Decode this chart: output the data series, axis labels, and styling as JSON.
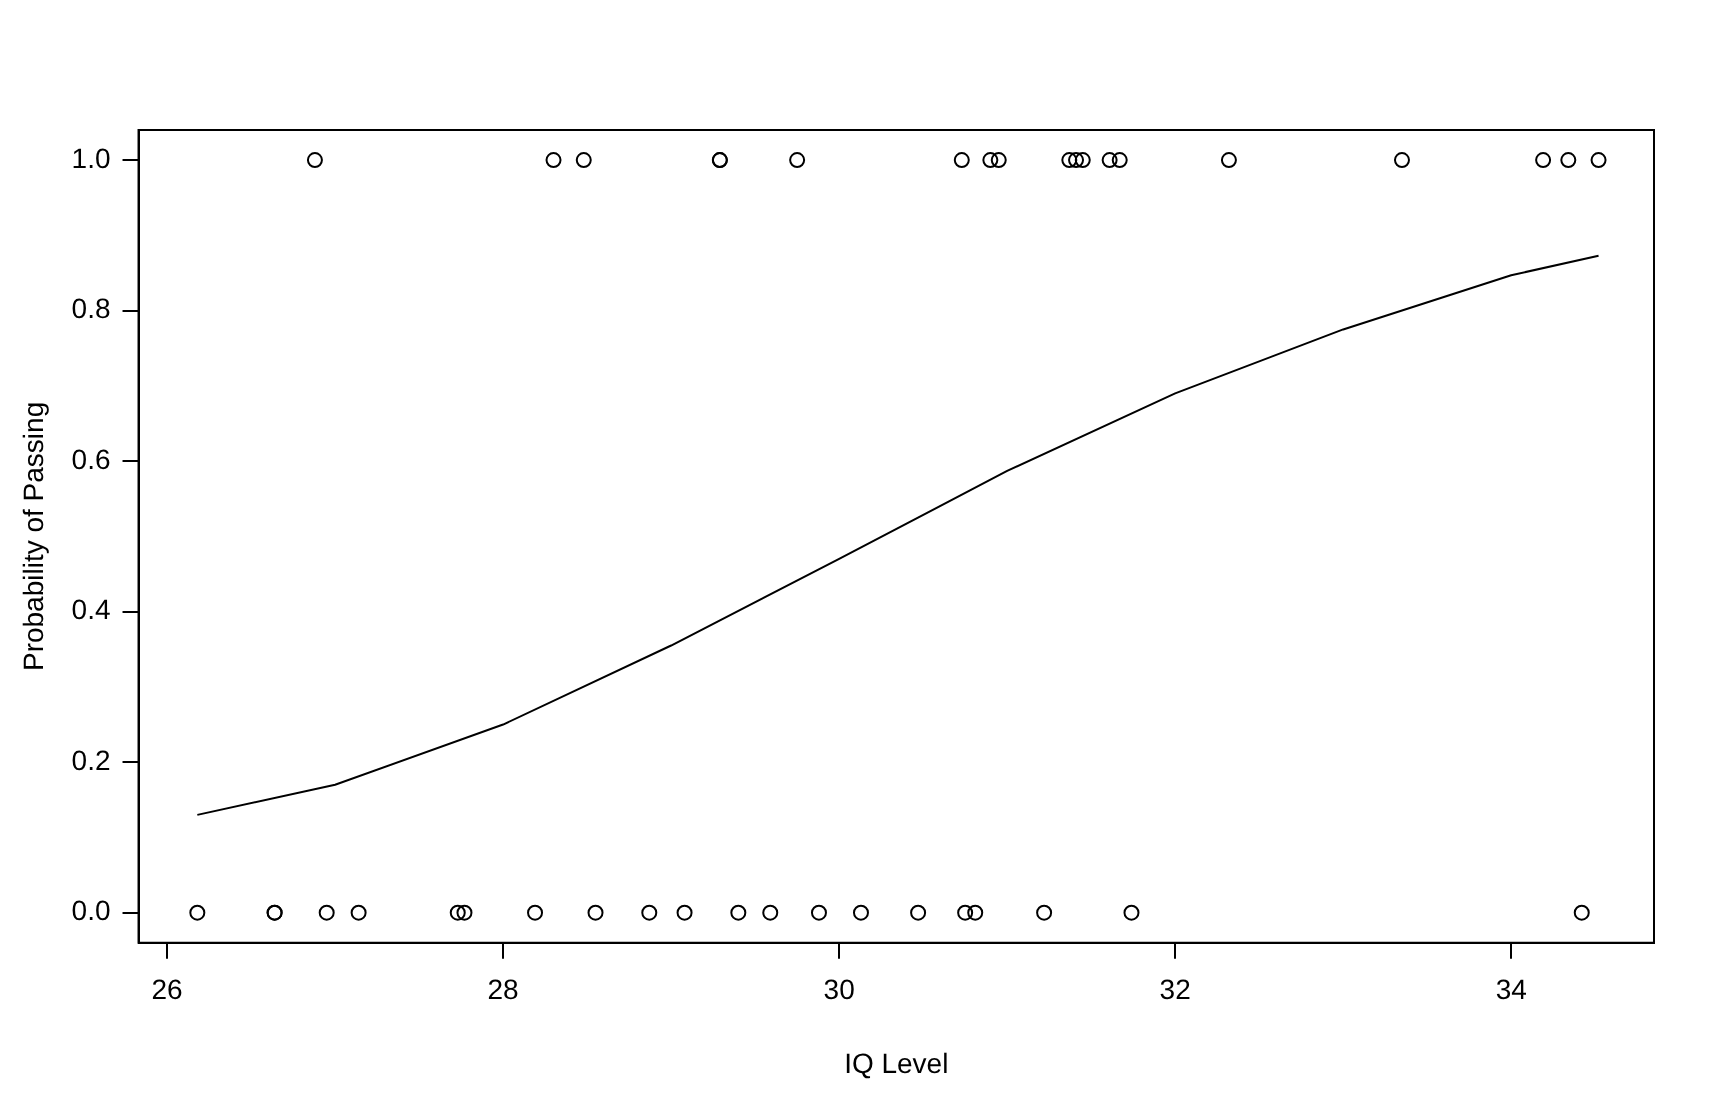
{
  "chart_data": {
    "type": "scatter",
    "xlabel": "IQ Level",
    "ylabel": "Probability of Passing",
    "xlim": [
      25.83,
      34.85
    ],
    "xticks": [
      26,
      28,
      30,
      32,
      34
    ],
    "ylim": [
      -0.04,
      1.04
    ],
    "yticks": [
      {
        "value": 0,
        "label": "0.0"
      },
      0.2,
      0.4,
      0.6,
      0.8,
      {
        "value": 1,
        "label": "1.0"
      }
    ],
    "grid": false,
    "legend": false,
    "series": [
      {
        "color": "#000000",
        "marker": "circle",
        "x": [
          26.18,
          26.64,
          26.64,
          26.95,
          27.14,
          27.73,
          27.77,
          28.19,
          28.55,
          28.87,
          29.08,
          29.4,
          29.59,
          29.88,
          30.13,
          30.47,
          30.75,
          30.81,
          31.22,
          31.74,
          34.42,
          26.88,
          28.3,
          28.48,
          29.29,
          29.29,
          29.75,
          30.73,
          30.9,
          30.95,
          31.37,
          31.41,
          31.45,
          31.61,
          31.67,
          32.32,
          33.35,
          34.19,
          34.34,
          34.52
        ],
        "values": [
          0,
          0,
          0,
          0,
          0,
          0,
          0,
          0,
          0,
          0,
          0,
          0,
          0,
          0,
          0,
          0,
          0,
          0,
          0,
          0,
          0,
          1,
          1,
          1,
          1,
          1,
          1,
          1,
          1,
          1,
          1,
          1,
          1,
          1,
          1,
          1,
          1,
          1,
          1,
          1
        ]
      },
      {
        "type": "line",
        "color": "#000000",
        "line_style": "solid",
        "marker": "none",
        "x": [
          26.18,
          27,
          28,
          29,
          30,
          31,
          32,
          33,
          34,
          34.52
        ],
        "values": [
          0.13,
          0.17,
          0.25,
          0.355,
          0.47,
          0.587,
          0.69,
          0.775,
          0.847,
          0.873
        ]
      }
    ]
  }
}
